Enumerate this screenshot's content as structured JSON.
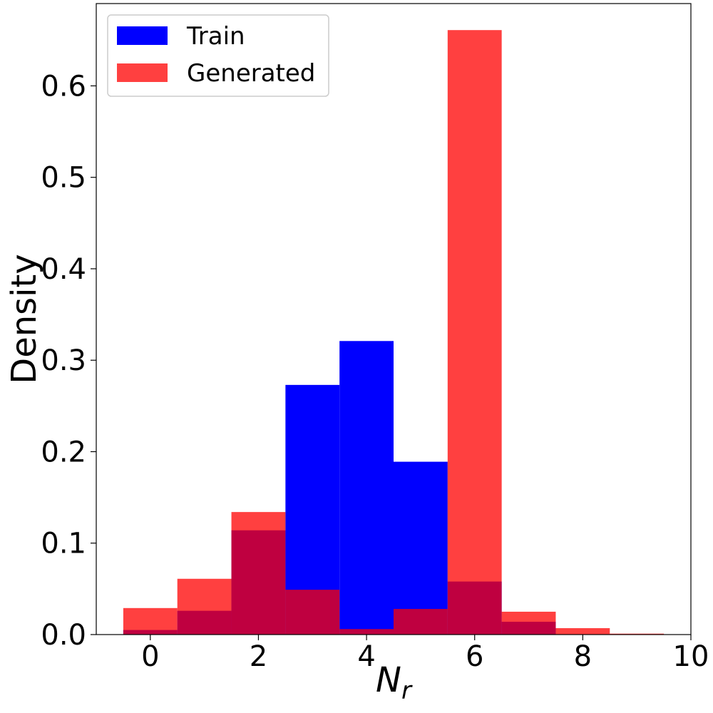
{
  "chart_data": {
    "type": "bar",
    "subtype": "histogram-overlay",
    "bin_edges": [
      -0.5,
      0.5,
      1.5,
      2.5,
      3.5,
      4.5,
      5.5,
      6.5,
      7.5,
      8.5,
      9.5
    ],
    "series": [
      {
        "name": "Train",
        "color": "#0000ff",
        "opacity": 1.0,
        "values": [
          0.005,
          0.026,
          0.114,
          0.273,
          0.321,
          0.189,
          0.058,
          0.014,
          0.0,
          0.0
        ]
      },
      {
        "name": "Generated",
        "color": "#ff0000",
        "opacity": 0.75,
        "values": [
          0.029,
          0.061,
          0.134,
          0.049,
          0.006,
          0.028,
          0.661,
          0.025,
          0.007,
          0.001
        ]
      }
    ],
    "xlabel_main": "N",
    "xlabel_sub": "r",
    "ylabel": "Density",
    "xlim": [
      -1.0,
      10.0
    ],
    "ylim": [
      0.0,
      0.69
    ],
    "xticks": [
      0,
      2,
      4,
      6,
      8,
      10
    ],
    "xtick_labels": [
      "0",
      "2",
      "4",
      "6",
      "8",
      "10"
    ],
    "yticks": [
      0.0,
      0.1,
      0.2,
      0.3,
      0.4,
      0.5,
      0.6
    ],
    "ytick_labels": [
      "0.0",
      "0.1",
      "0.2",
      "0.3",
      "0.4",
      "0.5",
      "0.6"
    ],
    "grid": false,
    "legend_position": "top-left"
  }
}
